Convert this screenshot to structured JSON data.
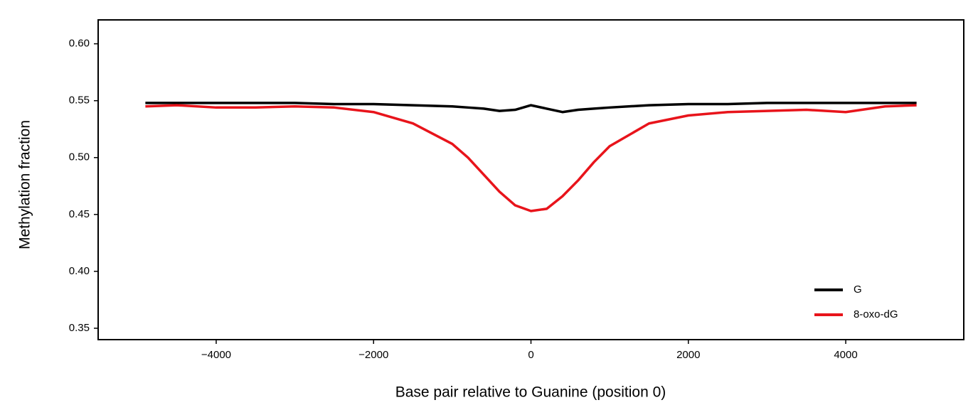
{
  "chart_data": {
    "type": "line",
    "xlabel": "Base pair relative to Guanine (position 0)",
    "ylabel": "Methylation fraction",
    "x": [
      -4900,
      -4500,
      -4000,
      -3500,
      -3000,
      -2500,
      -2000,
      -1500,
      -1000,
      -800,
      -600,
      -400,
      -200,
      0,
      200,
      400,
      600,
      800,
      1000,
      1500,
      2000,
      2500,
      3000,
      3500,
      4000,
      4500,
      4900
    ],
    "series": [
      {
        "name": "G",
        "color": "#000000",
        "values": [
          0.548,
          0.548,
          0.548,
          0.548,
          0.548,
          0.547,
          0.547,
          0.546,
          0.545,
          0.544,
          0.543,
          0.541,
          0.542,
          0.546,
          0.543,
          0.54,
          0.542,
          0.543,
          0.544,
          0.546,
          0.547,
          0.547,
          0.548,
          0.548,
          0.548,
          0.548,
          0.548
        ]
      },
      {
        "name": "8-oxo-dG",
        "color": "#e8141b",
        "values": [
          0.545,
          0.546,
          0.544,
          0.544,
          0.545,
          0.544,
          0.54,
          0.53,
          0.512,
          0.5,
          0.485,
          0.47,
          0.458,
          0.453,
          0.455,
          0.466,
          0.48,
          0.496,
          0.51,
          0.53,
          0.537,
          0.54,
          0.541,
          0.542,
          0.54,
          0.545,
          0.546
        ]
      }
    ],
    "xlim": [
      -5500,
      5500
    ],
    "ylim": [
      0.34,
      0.621
    ],
    "xticks": [
      {
        "value": -4000,
        "label": "−4000"
      },
      {
        "value": -2000,
        "label": "−2000"
      },
      0,
      2000,
      4000
    ],
    "yticks": [
      {
        "value": 0.35,
        "label": "0.35"
      },
      {
        "value": 0.4,
        "label": "0.40"
      },
      {
        "value": 0.45,
        "label": "0.45"
      },
      {
        "value": 0.5,
        "label": "0.50"
      },
      {
        "value": 0.55,
        "label": "0.55"
      },
      {
        "value": 0.6,
        "label": "0.60"
      }
    ],
    "legend": "lower right"
  }
}
